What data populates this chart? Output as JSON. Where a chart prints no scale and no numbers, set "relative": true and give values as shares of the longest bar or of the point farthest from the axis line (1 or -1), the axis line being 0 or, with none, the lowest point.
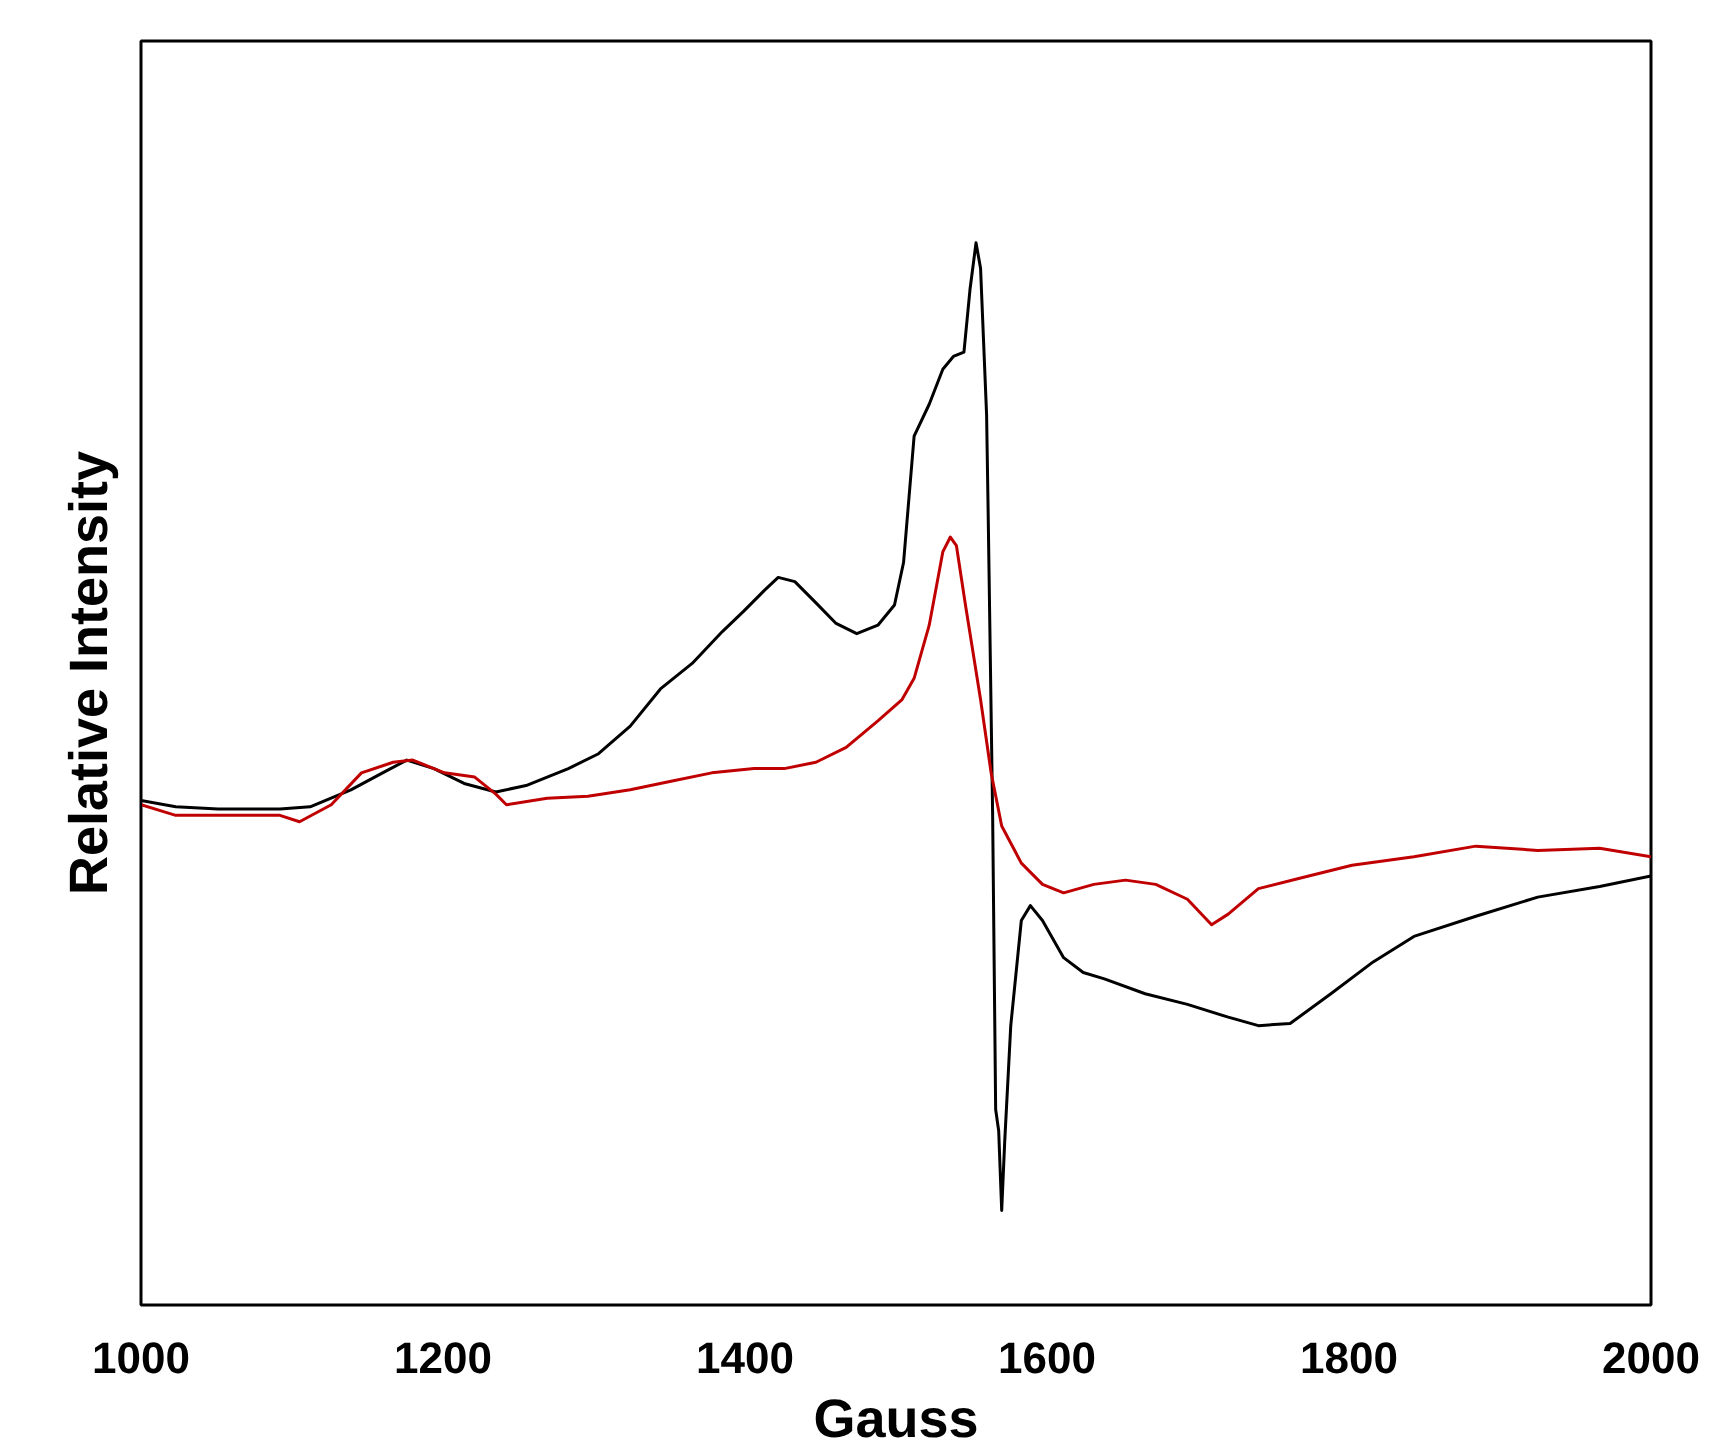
{
  "chart_data": {
    "type": "line",
    "xlabel": "Gauss",
    "ylabel": "Relative Intensity",
    "relative": true,
    "xlim": [
      1000,
      2000
    ],
    "xticks": [
      1000,
      1200,
      1400,
      1600,
      1800,
      2000
    ],
    "grid": false,
    "marker": "none",
    "line_style": "solid",
    "series": [
      {
        "color": "#000000",
        "x": [
          1000,
          1023,
          1051,
          1092,
          1112,
          1139,
          1160,
          1176,
          1194,
          1214,
          1235,
          1255,
          1283,
          1303,
          1324,
          1344,
          1365,
          1385,
          1399,
          1413,
          1422,
          1433,
          1447,
          1460,
          1474,
          1488,
          1499,
          1505,
          1512,
          1522,
          1531,
          1538,
          1545,
          1549,
          1553,
          1556,
          1560,
          1561,
          1564,
          1566,
          1568,
          1570,
          1572,
          1576,
          1583,
          1589,
          1597,
          1611,
          1624,
          1638,
          1665,
          1693,
          1720,
          1740,
          1761,
          1788,
          1816,
          1843,
          1884,
          1925,
          1966,
          2000
        ],
        "values": [
          0.475,
          0.469,
          0.467,
          0.467,
          0.469,
          0.485,
          0.501,
          0.513,
          0.505,
          0.491,
          0.483,
          0.489,
          0.505,
          0.519,
          0.545,
          0.58,
          0.604,
          0.634,
          0.653,
          0.673,
          0.685,
          0.681,
          0.661,
          0.642,
          0.632,
          0.64,
          0.659,
          0.699,
          0.818,
          0.848,
          0.881,
          0.893,
          0.897,
          0.956,
          1.0,
          0.976,
          0.838,
          0.749,
          0.461,
          0.184,
          0.164,
          0.089,
          0.154,
          0.263,
          0.362,
          0.376,
          0.362,
          0.327,
          0.313,
          0.307,
          0.293,
          0.283,
          0.271,
          0.263,
          0.265,
          0.293,
          0.323,
          0.347,
          0.366,
          0.384,
          0.394,
          0.404
        ]
      },
      {
        "color": "#c00000",
        "x": [
          1000,
          1023,
          1051,
          1092,
          1105,
          1126,
          1146,
          1167,
          1180,
          1201,
          1221,
          1235,
          1242,
          1269,
          1296,
          1324,
          1351,
          1378,
          1406,
          1426,
          1447,
          1467,
          1488,
          1504,
          1512,
          1522,
          1531,
          1536,
          1540,
          1546,
          1556,
          1563,
          1570,
          1583,
          1597,
          1611,
          1631,
          1652,
          1672,
          1693,
          1709,
          1720,
          1740,
          1768,
          1802,
          1843,
          1884,
          1925,
          1966,
          2000
        ],
        "values": [
          0.471,
          0.461,
          0.461,
          0.461,
          0.455,
          0.471,
          0.501,
          0.511,
          0.513,
          0.501,
          0.497,
          0.481,
          0.471,
          0.477,
          0.479,
          0.485,
          0.493,
          0.501,
          0.505,
          0.505,
          0.511,
          0.525,
          0.55,
          0.57,
          0.59,
          0.64,
          0.709,
          0.723,
          0.715,
          0.659,
          0.57,
          0.501,
          0.451,
          0.416,
          0.396,
          0.388,
          0.396,
          0.4,
          0.396,
          0.382,
          0.358,
          0.368,
          0.392,
          0.402,
          0.414,
          0.422,
          0.432,
          0.428,
          0.43,
          0.422
        ]
      }
    ]
  }
}
